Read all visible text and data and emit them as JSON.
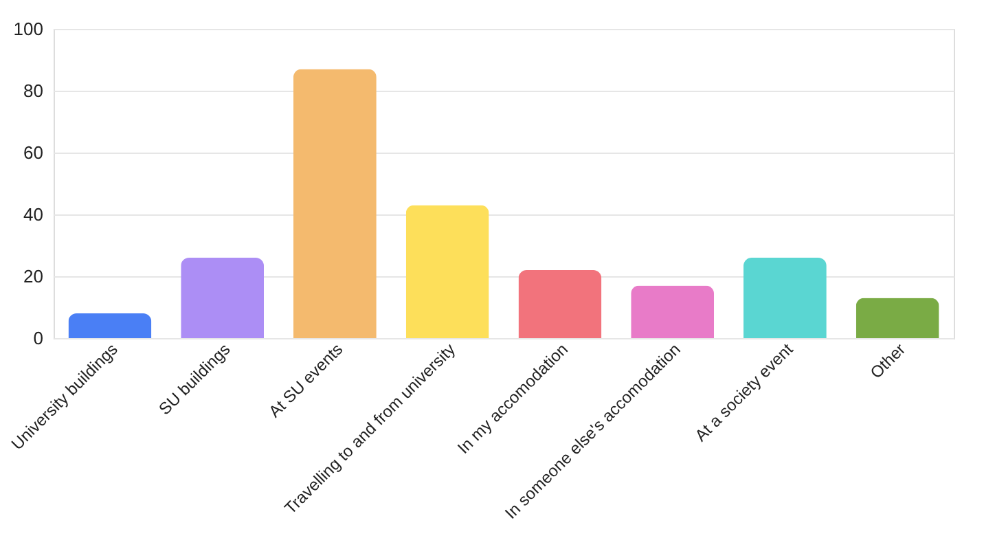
{
  "chart_data": {
    "type": "bar",
    "categories": [
      "University buildings",
      "SU buildings",
      "At SU events",
      "Travelling to and from university",
      "In my accomodation",
      "In someone else's accomodation",
      "At a society event",
      "Other"
    ],
    "values": [
      8,
      26,
      87,
      43,
      22,
      17,
      26,
      13
    ],
    "colors": [
      "#4a7ff5",
      "#ac8ef5",
      "#f4ba6e",
      "#fddf5a",
      "#f2737c",
      "#e87bc8",
      "#5ad6d2",
      "#7aab45"
    ],
    "ylim": [
      0,
      100
    ],
    "yticks": [
      0,
      20,
      40,
      60,
      80,
      100
    ],
    "grid": "y"
  }
}
